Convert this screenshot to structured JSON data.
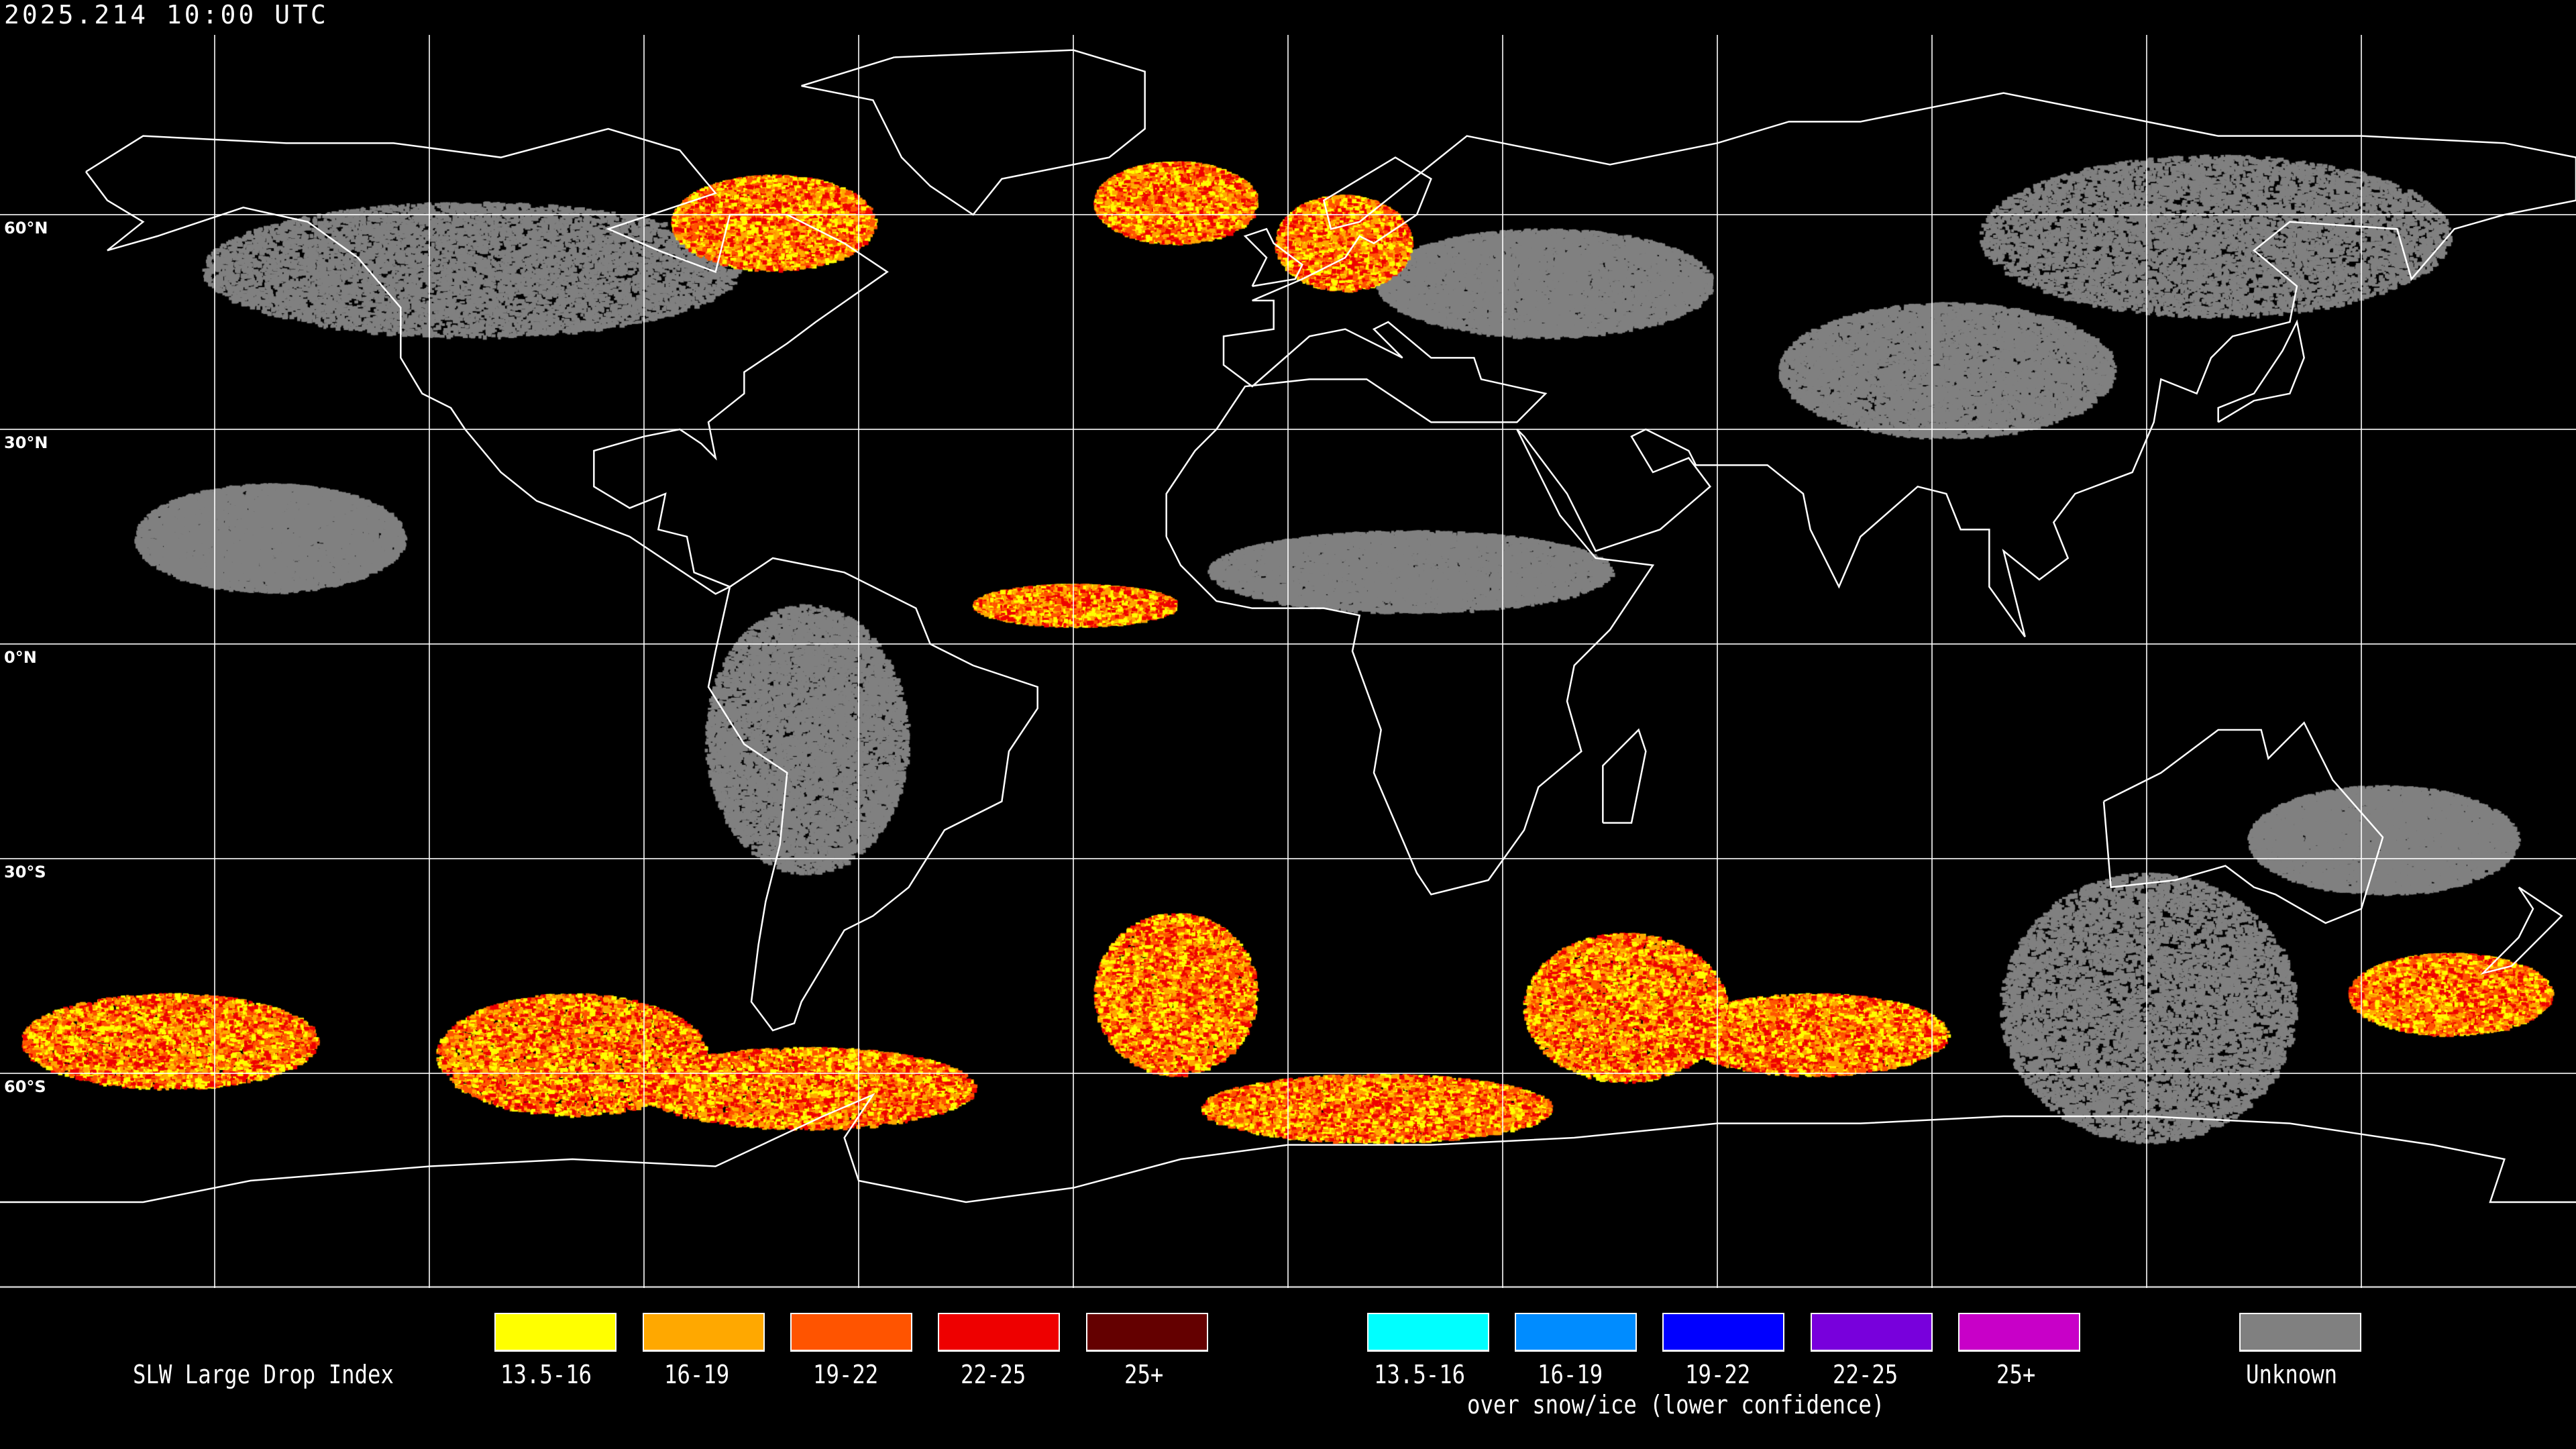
{
  "timestamp": "2025.214 10:00 UTC",
  "map": {
    "projection": "equirectangular",
    "grid_spacing_deg": 30,
    "lat_labels": [
      "60°N",
      "30°N",
      "0°N",
      "30°S",
      "60°S"
    ],
    "background_color": "#000000",
    "coastline_color": "#ffffff",
    "grid_color": "#ffffff"
  },
  "legend": {
    "title": "SLW Large Drop Index",
    "primary": [
      {
        "label": "13.5-16",
        "color": "#ffff00"
      },
      {
        "label": "16-19",
        "color": "#ffa800"
      },
      {
        "label": "19-22",
        "color": "#ff5400"
      },
      {
        "label": "22-25",
        "color": "#ee0000"
      },
      {
        "label": "25+",
        "color": "#640000"
      }
    ],
    "snow_ice": [
      {
        "label": "13.5-16",
        "color": "#00ffff"
      },
      {
        "label": "16-19",
        "color": "#008cff"
      },
      {
        "label": "19-22",
        "color": "#0000ff"
      },
      {
        "label": "22-25",
        "color": "#7800dc"
      },
      {
        "label": "25+",
        "color": "#c800c8"
      }
    ],
    "snow_ice_caption": "over snow/ice (lower confidence)",
    "unknown": {
      "label": "Unknown",
      "color": "#808080"
    }
  }
}
